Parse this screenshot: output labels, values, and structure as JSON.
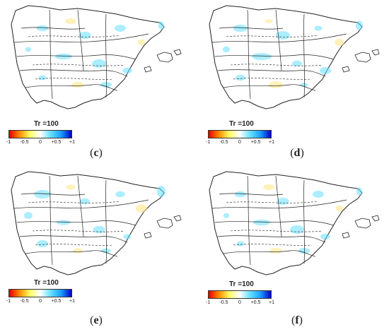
{
  "panels": [
    {
      "tr_label": "Tr =100",
      "caption": "c"
    },
    {
      "tr_label": "Tr =100",
      "caption": "d"
    },
    {
      "tr_label": "Tr =100",
      "caption": "e"
    },
    {
      "tr_label": "Tr =100",
      "caption": "f"
    }
  ],
  "colorbar": {
    "ticks": [
      "-1",
      "-0.5",
      "0",
      "+0.5",
      "+1"
    ],
    "colors": [
      "#e00000",
      "#ff8c00",
      "#ffff66",
      "#ffffff",
      "#66e0ff",
      "#1a9fff",
      "#0000cc"
    ]
  },
  "map_colors": {
    "land": "#ffffff",
    "positive": "#66e0ff",
    "negative": "#ffe680",
    "outline": "#222222"
  }
}
